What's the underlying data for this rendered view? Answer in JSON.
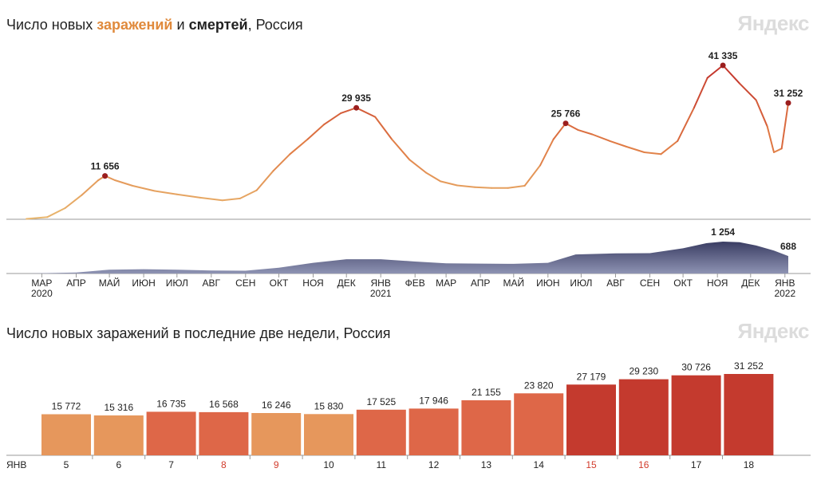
{
  "header": {
    "title_part1": "Число новых ",
    "title_infections": "заражений",
    "title_part2": " и ",
    "title_deaths": "смертей",
    "title_part3": ", Россия",
    "brand": "Яндекс",
    "title2": "Число новых заражений в последние две недели, Россия",
    "brand2": "Яндекс"
  },
  "colors": {
    "low": "#e9b870",
    "mid": "#e07a44",
    "high": "#c2312b",
    "deaths": "#3a3d63",
    "deaths_top": "#8e93b3",
    "axis": "#9a9a9a",
    "bar_light": "#e6975c",
    "bar_mid": "#de6748",
    "bar_dark": "#c43a2e"
  },
  "chart_data": [
    {
      "type": "line",
      "title": "Число новых заражений и смертей, Россия",
      "series": [
        {
          "name": "заражений",
          "x": [
            "2020-03-01",
            "2020-03-20",
            "2020-04-05",
            "2020-04-20",
            "2020-05-05",
            "2020-05-11",
            "2020-05-20",
            "2020-06-05",
            "2020-06-25",
            "2020-07-15",
            "2020-08-05",
            "2020-08-25",
            "2020-09-10",
            "2020-09-25",
            "2020-10-10",
            "2020-10-25",
            "2020-11-10",
            "2020-11-25",
            "2020-12-10",
            "2020-12-24",
            "2021-01-10",
            "2021-01-25",
            "2021-02-10",
            "2021-02-25",
            "2021-03-10",
            "2021-03-25",
            "2021-04-10",
            "2021-04-25",
            "2021-05-10",
            "2021-05-25",
            "2021-06-08",
            "2021-06-20",
            "2021-07-01",
            "2021-07-12",
            "2021-07-25",
            "2021-08-10",
            "2021-08-25",
            "2021-09-10",
            "2021-09-25",
            "2021-10-10",
            "2021-10-25",
            "2021-11-06",
            "2021-11-20",
            "2021-12-05",
            "2021-12-20",
            "2021-12-30",
            "2022-01-05",
            "2022-01-12",
            "2022-01-18"
          ],
          "values": [
            100,
            600,
            3000,
            6500,
            10500,
            11656,
            10500,
            9000,
            7600,
            6700,
            5800,
            5100,
            5600,
            7800,
            13000,
            17500,
            21500,
            25500,
            28500,
            29935,
            27500,
            21500,
            16000,
            12500,
            10200,
            9100,
            8600,
            8400,
            8400,
            9000,
            14500,
            21500,
            25766,
            24000,
            22800,
            21000,
            19500,
            18000,
            17500,
            21000,
            30000,
            38000,
            41335,
            36500,
            32000,
            25000,
            18000,
            19000,
            31252
          ]
        },
        {
          "name": "смертей",
          "x": [
            "2020-03-01",
            "2020-04-15",
            "2020-05-15",
            "2020-06-15",
            "2020-07-15",
            "2020-08-15",
            "2020-09-15",
            "2020-10-15",
            "2020-11-15",
            "2020-12-15",
            "2021-01-15",
            "2021-02-15",
            "2021-03-15",
            "2021-04-15",
            "2021-05-15",
            "2021-06-15",
            "2021-07-10",
            "2021-08-15",
            "2021-09-15",
            "2021-10-15",
            "2021-11-05",
            "2021-11-20",
            "2021-12-05",
            "2021-12-20",
            "2022-01-05",
            "2022-01-18"
          ],
          "values": [
            0,
            40,
            150,
            170,
            150,
            120,
            110,
            230,
            420,
            560,
            560,
            470,
            400,
            390,
            380,
            420,
            750,
            790,
            800,
            990,
            1190,
            1254,
            1230,
            1100,
            900,
            688
          ]
        }
      ],
      "annotations": [
        {
          "label": "11 656",
          "x": "2020-05-11",
          "value": 11656,
          "series": "заражений"
        },
        {
          "label": "29 935",
          "x": "2020-12-24",
          "value": 29935,
          "series": "заражений"
        },
        {
          "label": "25 766",
          "x": "2021-07-01",
          "value": 25766,
          "series": "заражений"
        },
        {
          "label": "41 335",
          "x": "2021-11-20",
          "value": 41335,
          "series": "заражений"
        },
        {
          "label": "31 252",
          "x": "2022-01-18",
          "value": 31252,
          "series": "заражений"
        },
        {
          "label": "1 254",
          "x": "2021-11-20",
          "value": 1254,
          "series": "смертей"
        },
        {
          "label": "688",
          "x": "2022-01-18",
          "value": 688,
          "series": "смертей"
        }
      ],
      "x_ticks": [
        {
          "label": "МАР",
          "sub": "2020",
          "x": "2020-03-15"
        },
        {
          "label": "АПР",
          "sub": "",
          "x": "2020-04-15"
        },
        {
          "label": "МАЙ",
          "sub": "",
          "x": "2020-05-15"
        },
        {
          "label": "ИЮН",
          "sub": "",
          "x": "2020-06-15"
        },
        {
          "label": "ИЮЛ",
          "sub": "",
          "x": "2020-07-15"
        },
        {
          "label": "АВГ",
          "sub": "",
          "x": "2020-08-15"
        },
        {
          "label": "СЕН",
          "sub": "",
          "x": "2020-09-15"
        },
        {
          "label": "ОКТ",
          "sub": "",
          "x": "2020-10-15"
        },
        {
          "label": "НОЯ",
          "sub": "",
          "x": "2020-11-15"
        },
        {
          "label": "ДЕК",
          "sub": "",
          "x": "2020-12-15"
        },
        {
          "label": "ЯНВ",
          "sub": "2021",
          "x": "2021-01-15"
        },
        {
          "label": "ФЕВ",
          "sub": "",
          "x": "2021-02-15"
        },
        {
          "label": "МАР",
          "sub": "",
          "x": "2021-03-15"
        },
        {
          "label": "АПР",
          "sub": "",
          "x": "2021-04-15"
        },
        {
          "label": "МАЙ",
          "sub": "",
          "x": "2021-05-15"
        },
        {
          "label": "ИЮН",
          "sub": "",
          "x": "2021-06-15"
        },
        {
          "label": "ИЮЛ",
          "sub": "",
          "x": "2021-07-15"
        },
        {
          "label": "АВГ",
          "sub": "",
          "x": "2021-08-15"
        },
        {
          "label": "СЕН",
          "sub": "",
          "x": "2021-09-15"
        },
        {
          "label": "ОКТ",
          "sub": "",
          "x": "2021-10-15"
        },
        {
          "label": "НОЯ",
          "sub": "",
          "x": "2021-11-15"
        },
        {
          "label": "ДЕК",
          "sub": "",
          "x": "2021-12-15"
        },
        {
          "label": "ЯНВ",
          "sub": "2022",
          "x": "2022-01-15"
        }
      ]
    },
    {
      "type": "bar",
      "title": "Число новых заражений в последние две недели, Россия",
      "month_label": "ЯНВ",
      "categories": [
        "5",
        "6",
        "7",
        "8",
        "9",
        "10",
        "11",
        "12",
        "13",
        "14",
        "15",
        "16",
        "17",
        "18"
      ],
      "values": [
        15772,
        15316,
        16735,
        16568,
        16246,
        15830,
        17525,
        17946,
        21155,
        23820,
        27179,
        29230,
        30726,
        31252
      ],
      "value_labels": [
        "15 772",
        "15 316",
        "16 735",
        "16 568",
        "16 246",
        "15 830",
        "17 525",
        "17 946",
        "21 155",
        "23 820",
        "27 179",
        "29 230",
        "30 726",
        "31 252"
      ],
      "weekend": [
        false,
        false,
        false,
        true,
        true,
        false,
        false,
        false,
        false,
        false,
        true,
        true,
        false,
        false
      ],
      "ylim": [
        0,
        31252
      ]
    }
  ]
}
